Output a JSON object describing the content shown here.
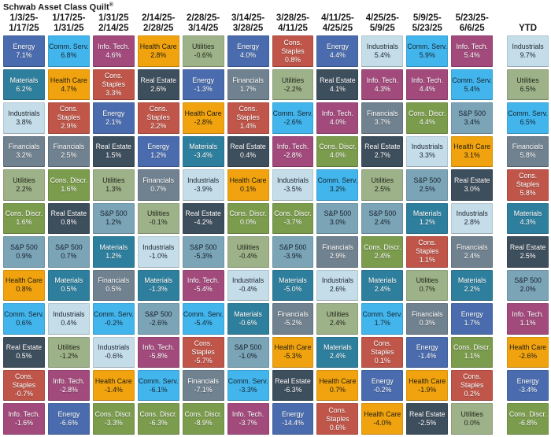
{
  "title": {
    "text": "Schwab Asset Class Quilt",
    "registered": "®"
  },
  "colors": {
    "Energy": {
      "bg": "#4a6cae",
      "fg": "#ffffff"
    },
    "Comm. Serv.": {
      "bg": "#41b5ec",
      "fg": "#1a242e"
    },
    "Info. Tech.": {
      "bg": "#a24a7c",
      "fg": "#ffffff"
    },
    "Health Care": {
      "bg": "#f0a30e",
      "fg": "#201c12"
    },
    "Materials": {
      "bg": "#2e7f9d",
      "fg": "#ffffff"
    },
    "Cons. Staples": {
      "bg": "#c05549",
      "fg": "#ffffff"
    },
    "Real Estate": {
      "bg": "#3d4e5d",
      "fg": "#ffffff"
    },
    "Industrials": {
      "bg": "#c5dde8",
      "fg": "#1c2630"
    },
    "Financials": {
      "bg": "#70818f",
      "fg": "#ffffff"
    },
    "Utilities": {
      "bg": "#9eb289",
      "fg": "#1e2418"
    },
    "Cons. Discr.": {
      "bg": "#7b9c4d",
      "fg": "#ffffff"
    },
    "S&P 500": {
      "bg": "#7ba4b7",
      "fg": "#16202a"
    }
  },
  "chart_data": {
    "type": "heatmap",
    "title": "Schwab Asset Class Quilt®",
    "description_layout": "Columns are two-week periods plus YTD; each column ranks sector returns best (top) to worst (bottom).",
    "columns": [
      {
        "period": [
          "1/3/25-",
          "1/17/25"
        ],
        "ytd": false,
        "ranking": [
          {
            "asset": "Energy",
            "return_pct": 7.1
          },
          {
            "asset": "Materials",
            "return_pct": 6.2
          },
          {
            "asset": "Industrials",
            "return_pct": 3.8
          },
          {
            "asset": "Financials",
            "return_pct": 3.2
          },
          {
            "asset": "Utilities",
            "return_pct": 2.2
          },
          {
            "asset": "Cons. Discr.",
            "return_pct": 1.6
          },
          {
            "asset": "S&P 500",
            "return_pct": 0.9
          },
          {
            "asset": "Health Care",
            "return_pct": 0.8
          },
          {
            "asset": "Comm. Serv.",
            "return_pct": 0.6
          },
          {
            "asset": "Real Estate",
            "return_pct": 0.5
          },
          {
            "asset": "Cons. Staples",
            "return_pct": -0.7
          },
          {
            "asset": "Info. Tech.",
            "return_pct": -1.6
          }
        ]
      },
      {
        "period": [
          "1/17/25-",
          "1/31/25"
        ],
        "ytd": false,
        "ranking": [
          {
            "asset": "Comm. Serv.",
            "return_pct": 6.8
          },
          {
            "asset": "Health Care",
            "return_pct": 4.7
          },
          {
            "asset": "Cons. Staples",
            "return_pct": 2.9
          },
          {
            "asset": "Financials",
            "return_pct": 2.5
          },
          {
            "asset": "Cons. Discr.",
            "return_pct": 1.6
          },
          {
            "asset": "Real Estate",
            "return_pct": 0.8
          },
          {
            "asset": "S&P 500",
            "return_pct": 0.7
          },
          {
            "asset": "Materials",
            "return_pct": 0.5
          },
          {
            "asset": "Industrials",
            "return_pct": 0.4
          },
          {
            "asset": "Utilities",
            "return_pct": -1.2
          },
          {
            "asset": "Info. Tech.",
            "return_pct": -2.8
          },
          {
            "asset": "Energy",
            "return_pct": -6.6
          }
        ]
      },
      {
        "period": [
          "1/31/25",
          "2/14/25"
        ],
        "ytd": false,
        "ranking": [
          {
            "asset": "Info. Tech.",
            "return_pct": 4.6
          },
          {
            "asset": "Cons. Staples",
            "return_pct": 3.3
          },
          {
            "asset": "Energy",
            "return_pct": 2.1
          },
          {
            "asset": "Real Estate",
            "return_pct": 1.5
          },
          {
            "asset": "Utilities",
            "return_pct": 1.3
          },
          {
            "asset": "S&P 500",
            "return_pct": 1.2
          },
          {
            "asset": "Materials",
            "return_pct": 1.2
          },
          {
            "asset": "Financials",
            "return_pct": 0.5
          },
          {
            "asset": "Comm. Serv.",
            "return_pct": -0.2
          },
          {
            "asset": "Industrials",
            "return_pct": -0.6
          },
          {
            "asset": "Health Care",
            "return_pct": -1.4
          },
          {
            "asset": "Cons. Discr.",
            "return_pct": -3.3
          }
        ]
      },
      {
        "period": [
          "2/14/25-",
          "2/28/25"
        ],
        "ytd": false,
        "ranking": [
          {
            "asset": "Health Care",
            "return_pct": 2.8
          },
          {
            "asset": "Real Estate",
            "return_pct": 2.6
          },
          {
            "asset": "Cons. Staples",
            "return_pct": 2.2
          },
          {
            "asset": "Energy",
            "return_pct": 1.2
          },
          {
            "asset": "Financials",
            "return_pct": 0.7
          },
          {
            "asset": "Utilities",
            "return_pct": -0.1
          },
          {
            "asset": "Industrials",
            "return_pct": -1.0
          },
          {
            "asset": "Materials",
            "return_pct": -1.3
          },
          {
            "asset": "S&P 500",
            "return_pct": -2.6
          },
          {
            "asset": "Info. Tech.",
            "return_pct": -5.8
          },
          {
            "asset": "Comm. Serv.",
            "return_pct": -6.1
          },
          {
            "asset": "Cons. Discr.",
            "return_pct": -6.3
          }
        ]
      },
      {
        "period": [
          "2/28/25-",
          "3/14/25"
        ],
        "ytd": false,
        "ranking": [
          {
            "asset": "Utilities",
            "return_pct": -0.6
          },
          {
            "asset": "Energy",
            "return_pct": -1.3
          },
          {
            "asset": "Health Care",
            "return_pct": -2.8
          },
          {
            "asset": "Materials",
            "return_pct": -3.4
          },
          {
            "asset": "Industrials",
            "return_pct": -3.9
          },
          {
            "asset": "Real Estate",
            "return_pct": -4.2
          },
          {
            "asset": "S&P 500",
            "return_pct": -5.3
          },
          {
            "asset": "Info. Tech.",
            "return_pct": -5.4
          },
          {
            "asset": "Comm. Serv.",
            "return_pct": -5.4
          },
          {
            "asset": "Cons. Staples",
            "return_pct": -5.7
          },
          {
            "asset": "Financials",
            "return_pct": -7.1
          },
          {
            "asset": "Cons. Discr.",
            "return_pct": -8.9
          }
        ]
      },
      {
        "period": [
          "3/14/25-",
          "3/28/25"
        ],
        "ytd": false,
        "ranking": [
          {
            "asset": "Energy",
            "return_pct": 4.0
          },
          {
            "asset": "Financials",
            "return_pct": 1.7
          },
          {
            "asset": "Cons. Staples",
            "return_pct": 1.4
          },
          {
            "asset": "Real Estate",
            "return_pct": 0.4
          },
          {
            "asset": "Health Care",
            "return_pct": 0.1
          },
          {
            "asset": "Cons. Discr.",
            "return_pct": 0.0
          },
          {
            "asset": "Utilities",
            "return_pct": -0.4
          },
          {
            "asset": "Industrials",
            "return_pct": -0.4
          },
          {
            "asset": "Materials",
            "return_pct": -0.6
          },
          {
            "asset": "S&P 500",
            "return_pct": -1.0
          },
          {
            "asset": "Comm. Serv.",
            "return_pct": -3.3
          },
          {
            "asset": "Info. Tech.",
            "return_pct": -3.7
          }
        ]
      },
      {
        "period": [
          "3/28/25-",
          "4/11/25"
        ],
        "ytd": false,
        "ranking": [
          {
            "asset": "Cons. Staples",
            "return_pct": 0.8
          },
          {
            "asset": "Utilities",
            "return_pct": -2.2
          },
          {
            "asset": "Comm. Serv.",
            "return_pct": -2.6
          },
          {
            "asset": "Info. Tech.",
            "return_pct": -2.8
          },
          {
            "asset": "Industrials",
            "return_pct": -3.5
          },
          {
            "asset": "Cons. Discr.",
            "return_pct": -3.7
          },
          {
            "asset": "S&P 500",
            "return_pct": -3.9
          },
          {
            "asset": "Materials",
            "return_pct": -5.0
          },
          {
            "asset": "Financials",
            "return_pct": -5.2
          },
          {
            "asset": "Health Care",
            "return_pct": -5.3
          },
          {
            "asset": "Real Estate",
            "return_pct": -6.3
          },
          {
            "asset": "Energy",
            "return_pct": -14.4
          }
        ]
      },
      {
        "period": [
          "4/11/25-",
          "4/25/25"
        ],
        "ytd": false,
        "ranking": [
          {
            "asset": "Energy",
            "return_pct": 4.4
          },
          {
            "asset": "Real Estate",
            "return_pct": 4.1
          },
          {
            "asset": "Info. Tech.",
            "return_pct": 4.0
          },
          {
            "asset": "Cons. Discr.",
            "return_pct": 4.0
          },
          {
            "asset": "Comm. Serv.",
            "return_pct": 3.2
          },
          {
            "asset": "S&P 500",
            "return_pct": 3.0
          },
          {
            "asset": "Financials",
            "return_pct": 2.9
          },
          {
            "asset": "Industrials",
            "return_pct": 2.6
          },
          {
            "asset": "Utilities",
            "return_pct": 2.4
          },
          {
            "asset": "Materials",
            "return_pct": 2.4
          },
          {
            "asset": "Health Care",
            "return_pct": 0.7
          },
          {
            "asset": "Cons. Staples",
            "return_pct": 0.6
          }
        ]
      },
      {
        "period": [
          "4/25/25-",
          "5/9/25"
        ],
        "ytd": false,
        "ranking": [
          {
            "asset": "Industrials",
            "return_pct": 5.4
          },
          {
            "asset": "Info. Tech.",
            "return_pct": 4.3
          },
          {
            "asset": "Financials",
            "return_pct": 3.7
          },
          {
            "asset": "Real Estate",
            "return_pct": 2.7
          },
          {
            "asset": "Utilities",
            "return_pct": 2.5
          },
          {
            "asset": "S&P 500",
            "return_pct": 2.4
          },
          {
            "asset": "Cons. Discr.",
            "return_pct": 2.4
          },
          {
            "asset": "Materials",
            "return_pct": 2.4
          },
          {
            "asset": "Comm. Serv.",
            "return_pct": 1.7
          },
          {
            "asset": "Cons. Staples",
            "return_pct": 0.1
          },
          {
            "asset": "Energy",
            "return_pct": -0.2
          },
          {
            "asset": "Health Care",
            "return_pct": -4.0
          }
        ]
      },
      {
        "period": [
          "5/9/25-",
          "5/23/25"
        ],
        "ytd": false,
        "ranking": [
          {
            "asset": "Comm. Serv.",
            "return_pct": 5.9
          },
          {
            "asset": "Info. Tech.",
            "return_pct": 4.4
          },
          {
            "asset": "Cons. Discr.",
            "return_pct": 4.4
          },
          {
            "asset": "Industrials",
            "return_pct": 3.3
          },
          {
            "asset": "S&P 500",
            "return_pct": 2.5
          },
          {
            "asset": "Materials",
            "return_pct": 1.2
          },
          {
            "asset": "Cons. Staples",
            "return_pct": 1.1
          },
          {
            "asset": "Utilities",
            "return_pct": 0.7
          },
          {
            "asset": "Financials",
            "return_pct": 0.3
          },
          {
            "asset": "Energy",
            "return_pct": -1.4
          },
          {
            "asset": "Health Care",
            "return_pct": -1.9
          },
          {
            "asset": "Real Estate",
            "return_pct": -2.5
          }
        ]
      },
      {
        "period": [
          "5/23/25-",
          "6/6/25"
        ],
        "ytd": false,
        "ranking": [
          {
            "asset": "Info. Tech.",
            "return_pct": 5.4
          },
          {
            "asset": "Comm. Serv.",
            "return_pct": 5.4
          },
          {
            "asset": "S&P 500",
            "return_pct": 3.4
          },
          {
            "asset": "Health Care",
            "return_pct": 3.1
          },
          {
            "asset": "Real Estate",
            "return_pct": 3.0
          },
          {
            "asset": "Industrials",
            "return_pct": 2.8
          },
          {
            "asset": "Financials",
            "return_pct": 2.4
          },
          {
            "asset": "Materials",
            "return_pct": 2.2
          },
          {
            "asset": "Energy",
            "return_pct": 1.7
          },
          {
            "asset": "Cons. Discr.",
            "return_pct": 1.1
          },
          {
            "asset": "Cons. Staples",
            "return_pct": 0.2
          },
          {
            "asset": "Utilities",
            "return_pct": 0.0
          }
        ]
      },
      {
        "period": [
          "",
          "YTD"
        ],
        "ytd": true,
        "ranking": [
          {
            "asset": "Industrials",
            "return_pct": 9.7
          },
          {
            "asset": "Utilities",
            "return_pct": 6.5
          },
          {
            "asset": "Comm. Serv.",
            "return_pct": 6.5
          },
          {
            "asset": "Financials",
            "return_pct": 5.8
          },
          {
            "asset": "Cons. Staples",
            "return_pct": 5.8
          },
          {
            "asset": "Materials",
            "return_pct": 4.3
          },
          {
            "asset": "Real Estate",
            "return_pct": 2.5
          },
          {
            "asset": "S&P 500",
            "return_pct": 2.0
          },
          {
            "asset": "Info. Tech.",
            "return_pct": 1.1
          },
          {
            "asset": "Health Care",
            "return_pct": -2.6
          },
          {
            "asset": "Energy",
            "return_pct": -3.4
          },
          {
            "asset": "Cons. Discr.",
            "return_pct": -6.8
          }
        ]
      }
    ]
  }
}
